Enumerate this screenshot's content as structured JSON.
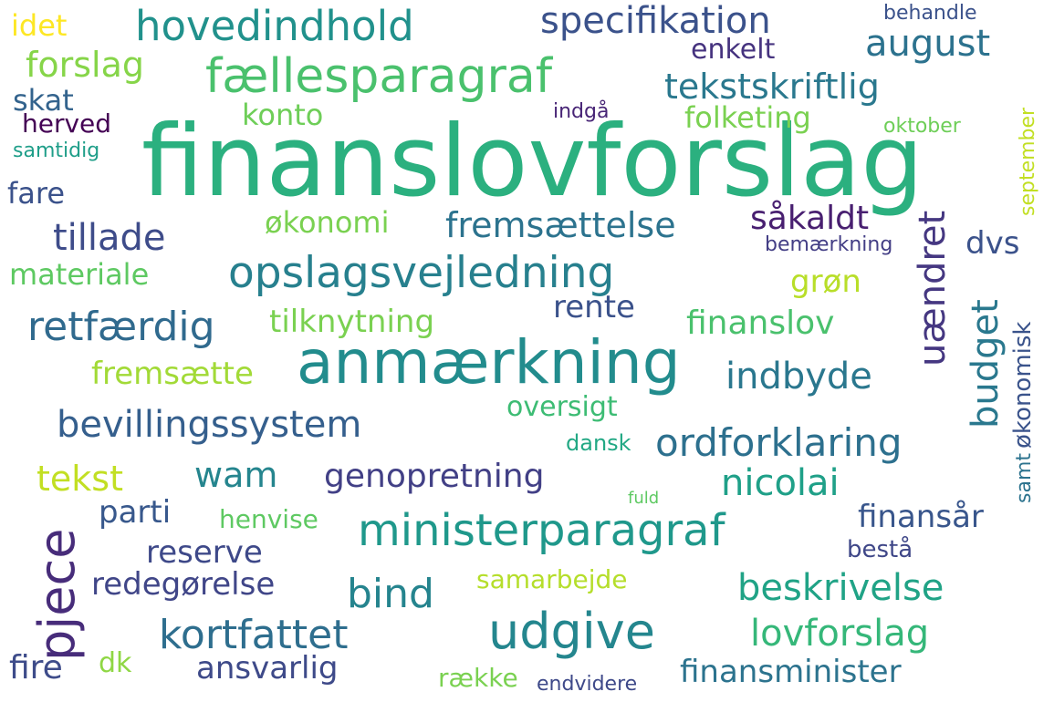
{
  "words": [
    {
      "text": "finanslovforslag",
      "color": "#2bb07f"
    },
    {
      "text": "anmærkning",
      "color": "#228c8d"
    },
    {
      "text": "opslagsvejledning",
      "color": "#27808e"
    },
    {
      "text": "fællesparagraf",
      "color": "#4ac16d"
    },
    {
      "text": "ministerparagraf",
      "color": "#1f988b"
    },
    {
      "text": "udgive",
      "color": "#24868e"
    },
    {
      "text": "hovedindhold",
      "color": "#21918c"
    },
    {
      "text": "specifikation",
      "color": "#3b528b"
    },
    {
      "text": "august",
      "color": "#2c728e"
    },
    {
      "text": "bevillingssystem",
      "color": "#355f8d"
    },
    {
      "text": "ordforklaring",
      "color": "#2d708e"
    },
    {
      "text": "kortfattet",
      "color": "#2e6e8e"
    },
    {
      "text": "beskrivelse",
      "color": "#20a386"
    },
    {
      "text": "lovforslag",
      "color": "#35b779"
    },
    {
      "text": "finansminister",
      "color": "#2c738e"
    },
    {
      "text": "ansvarlig",
      "color": "#3e4a89"
    },
    {
      "text": "redegørelse",
      "color": "#404688"
    },
    {
      "text": "reserve",
      "color": "#3e4989"
    },
    {
      "text": "bind",
      "color": "#25848e"
    },
    {
      "text": "genopretning",
      "color": "#424086"
    },
    {
      "text": "nicolai",
      "color": "#1fa088"
    },
    {
      "text": "wam",
      "color": "#25858e"
    },
    {
      "text": "tekst",
      "color": "#c2df23"
    },
    {
      "text": "parti",
      "color": "#38588c"
    },
    {
      "text": "henvise",
      "color": "#5ec962"
    },
    {
      "text": "finansår",
      "color": "#39568c"
    },
    {
      "text": "bestå",
      "color": "#3f4788"
    },
    {
      "text": "samarbejde",
      "color": "#b5de2b"
    },
    {
      "text": "indbyde",
      "color": "#2a778e"
    },
    {
      "text": "retfærdig",
      "color": "#306a8e"
    },
    {
      "text": "tilknytning",
      "color": "#7ad151"
    },
    {
      "text": "fremsætte",
      "color": "#a2da37"
    },
    {
      "text": "materiale",
      "color": "#5ec962"
    },
    {
      "text": "tillade",
      "color": "#3e4c8a"
    },
    {
      "text": "fare",
      "color": "#3b528b"
    },
    {
      "text": "økonomi",
      "color": "#7ad151"
    },
    {
      "text": "fremsættelse",
      "color": "#2c738e"
    },
    {
      "text": "såkaldt",
      "color": "#481f70"
    },
    {
      "text": "dvs",
      "color": "#3b528b"
    },
    {
      "text": "grøn",
      "color": "#b8de29"
    },
    {
      "text": "rente",
      "color": "#3b528b"
    },
    {
      "text": "finanslov",
      "color": "#4ac16d"
    },
    {
      "text": "oversigt",
      "color": "#3dbc74"
    },
    {
      "text": "dansk",
      "color": "#22a884"
    },
    {
      "text": "fuld",
      "color": "#5ec962"
    },
    {
      "text": "konto",
      "color": "#6ece58"
    },
    {
      "text": "folketing",
      "color": "#7ad151"
    },
    {
      "text": "tekstskriftlig",
      "color": "#2a788e"
    },
    {
      "text": "enkelt",
      "color": "#46337f"
    },
    {
      "text": "behandle",
      "color": "#3b528b"
    },
    {
      "text": "indgå",
      "color": "#482576"
    },
    {
      "text": "oktober",
      "color": "#6ece58"
    },
    {
      "text": "bemærkning",
      "color": "#433e85"
    },
    {
      "text": "idet",
      "color": "#fde725"
    },
    {
      "text": "forslag",
      "color": "#86d549"
    },
    {
      "text": "skat",
      "color": "#33638d"
    },
    {
      "text": "herved",
      "color": "#440154"
    },
    {
      "text": "samtidig",
      "color": "#1f9e89"
    },
    {
      "text": "fire",
      "color": "#3e4c8a"
    },
    {
      "text": "dk",
      "color": "#8fd744"
    },
    {
      "text": "række",
      "color": "#7ad151"
    },
    {
      "text": "endvidere",
      "color": "#3e4989"
    },
    {
      "text": "pjece",
      "color": "#472c7a"
    },
    {
      "text": "uændret",
      "color": "#453781"
    },
    {
      "text": "budget",
      "color": "#2a788e"
    },
    {
      "text": "økonomisk",
      "color": "#3a538b"
    },
    {
      "text": "samt",
      "color": "#2c738e"
    },
    {
      "text": "september",
      "color": "#c2df23"
    }
  ]
}
